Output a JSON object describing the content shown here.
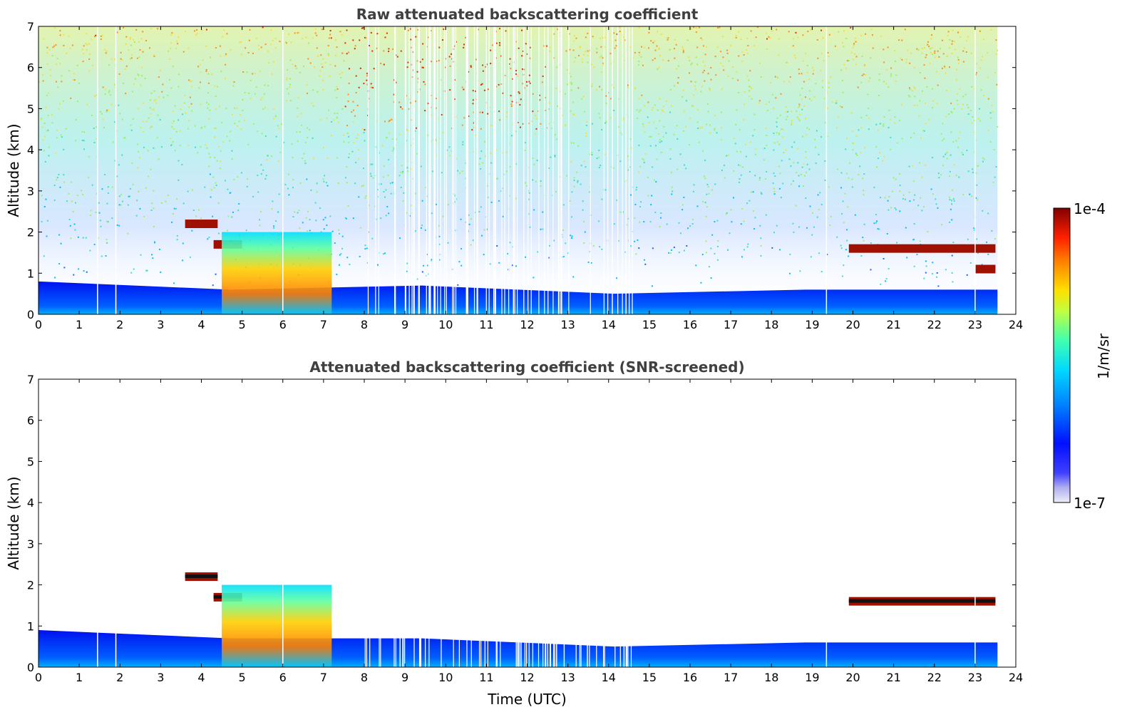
{
  "chart_data": [
    {
      "type": "heatmap",
      "title": "Raw attenuated backscattering coefficient",
      "xlabel": "",
      "ylabel": "Altitude (km)",
      "xlim": [
        0,
        24
      ],
      "ylim": [
        0,
        7
      ],
      "x_ticks": [
        "0",
        "1",
        "2",
        "3",
        "4",
        "5",
        "6",
        "7",
        "8",
        "9",
        "10",
        "11",
        "12",
        "13",
        "14",
        "15",
        "16",
        "17",
        "18",
        "19",
        "20",
        "21",
        "22",
        "23",
        "24"
      ],
      "y_ticks": [
        "0",
        "1",
        "2",
        "3",
        "4",
        "5",
        "6",
        "7"
      ],
      "data_end_time": 23.55,
      "features": [
        {
          "name": "boundary layer",
          "t_start": 0,
          "t_end": 23.55,
          "alt_top": [
            0.8,
            0.6,
            0.7,
            0.5,
            0.6,
            0.6
          ]
        },
        {
          "name": "cloud layer",
          "t_start": 3.6,
          "t_end": 4.4,
          "alt": 2.2
        },
        {
          "name": "cloud layer",
          "t_start": 4.3,
          "t_end": 5.0,
          "alt": 1.7
        },
        {
          "name": "precipitation",
          "t_start": 4.5,
          "t_end": 7.2,
          "alt_top": 2.0
        },
        {
          "name": "cloud layer",
          "t_start": 19.9,
          "t_end": 23.5,
          "alt": 1.6
        },
        {
          "name": "cloud layer",
          "t_start": 23.0,
          "t_end": 23.5,
          "alt": 1.1
        }
      ]
    },
    {
      "type": "heatmap",
      "title": "Attenuated backscattering coefficient (SNR-screened)",
      "xlabel": "Time (UTC)",
      "ylabel": "Altitude (km)",
      "xlim": [
        0,
        24
      ],
      "ylim": [
        0,
        7
      ],
      "x_ticks": [
        "0",
        "1",
        "2",
        "3",
        "4",
        "5",
        "6",
        "7",
        "8",
        "9",
        "10",
        "11",
        "12",
        "13",
        "14",
        "15",
        "16",
        "17",
        "18",
        "19",
        "20",
        "21",
        "22",
        "23",
        "24"
      ],
      "y_ticks": [
        "0",
        "1",
        "2",
        "3",
        "4",
        "5",
        "6",
        "7"
      ],
      "data_end_time": 23.55,
      "features": [
        {
          "name": "boundary layer",
          "t_start": 0,
          "t_end": 23.55,
          "alt_top": [
            0.9,
            0.7,
            0.7,
            0.5,
            0.6,
            0.6
          ]
        },
        {
          "name": "cloud layer",
          "t_start": 3.6,
          "t_end": 4.4,
          "alt": 2.2
        },
        {
          "name": "cloud layer",
          "t_start": 4.3,
          "t_end": 5.0,
          "alt": 1.7
        },
        {
          "name": "precipitation",
          "t_start": 4.5,
          "t_end": 7.2,
          "alt_top": 2.0
        },
        {
          "name": "cloud layer",
          "t_start": 19.9,
          "t_end": 23.5,
          "alt": 1.6
        }
      ]
    }
  ],
  "colorbar": {
    "label": "1/m/sr",
    "max_label": "1e-4",
    "min_label": "1e-7",
    "colors": [
      "#e8e8f8",
      "#c8c8f0",
      "#8080ff",
      "#0000ff",
      "#0060ff",
      "#00c0ff",
      "#40ffc0",
      "#a0ff60",
      "#ffff00",
      "#ffa000",
      "#ff4000",
      "#c00000",
      "#800000"
    ]
  }
}
